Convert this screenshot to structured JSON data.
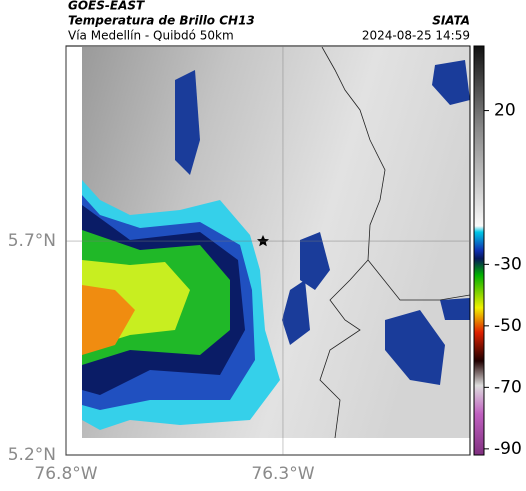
{
  "header": {
    "satellite": "GOES-EAST",
    "product": "Temperatura de Brillo CH13",
    "region": "Vía Medellín - Quibdó 50km",
    "source": "SIATA",
    "datetime": "2024-08-25 14:59"
  },
  "map": {
    "xlim": [
      -76.8,
      -75.869
    ],
    "ylim": [
      5.2,
      6.156
    ],
    "xticks": [
      {
        "value": -76.8,
        "label": "76.8°W"
      },
      {
        "value": -76.3,
        "label": "76.3°W"
      }
    ],
    "yticks": [
      {
        "value": 5.7,
        "label": "5.7°N"
      },
      {
        "value": 5.2,
        "label": "5.2°N"
      }
    ],
    "grid": true
  },
  "colorbar": {
    "lim": [
      -92,
      41
    ],
    "ticks": [
      20,
      -30,
      -50,
      -70,
      -90
    ]
  }
}
